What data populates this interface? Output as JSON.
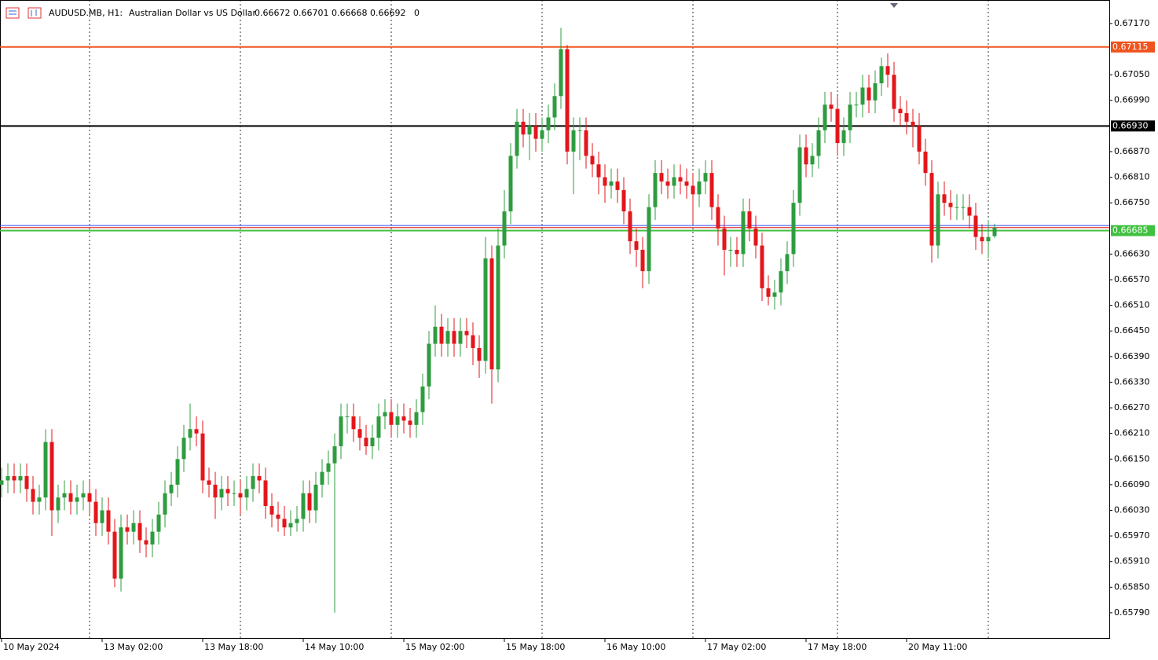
{
  "chart_data": {
    "type": "candlestick",
    "symbol": "AUDUSD.MB, H1:",
    "description": "Australian Dollar vs US Dollar",
    "quote": "0.66672 0.66701 0.66668 0.66692",
    "volume": "0",
    "categories": [
      "10 May 2024",
      null,
      null,
      null,
      null,
      null,
      null,
      null,
      null,
      null,
      null,
      null,
      null,
      null,
      null,
      null,
      "13 May 02:00",
      null,
      null,
      null,
      null,
      null,
      null,
      null,
      null,
      null,
      null,
      null,
      null,
      null,
      null,
      null,
      "13 May 18:00",
      null,
      null,
      null,
      null,
      null,
      null,
      null,
      null,
      null,
      null,
      null,
      null,
      null,
      null,
      null,
      "14 May 10:00",
      null,
      null,
      null,
      null,
      null,
      null,
      null,
      null,
      null,
      null,
      null,
      null,
      null,
      null,
      null,
      "15 May 02:00",
      null,
      null,
      null,
      null,
      null,
      null,
      null,
      null,
      null,
      null,
      null,
      null,
      null,
      null,
      null,
      "15 May 18:00",
      null,
      null,
      null,
      null,
      null,
      null,
      null,
      null,
      null,
      null,
      null,
      null,
      null,
      null,
      null,
      "16 May 10:00",
      null,
      null,
      null,
      null,
      null,
      null,
      null,
      null,
      null,
      null,
      null,
      null,
      null,
      null,
      null,
      "17 May 02:00",
      null,
      null,
      null,
      null,
      null,
      null,
      null,
      null,
      null,
      null,
      null,
      null,
      null,
      null,
      null,
      "17 May 18:00",
      null,
      null,
      null,
      null,
      null,
      null,
      null,
      null,
      null,
      null,
      null,
      null,
      null,
      null,
      null,
      "20 May 11:00",
      null,
      null,
      null,
      null,
      null,
      null,
      null,
      null,
      null,
      null,
      null,
      null,
      null,
      null
    ],
    "open": [
      0.6609,
      0.661,
      0.6611,
      0.661,
      0.6611,
      0.6608,
      0.6605,
      0.6606,
      0.6619,
      0.6603,
      0.6606,
      0.6607,
      0.6605,
      0.6606,
      0.6607,
      0.6605,
      0.66,
      0.6603,
      0.6598,
      0.6587,
      0.6599,
      0.6598,
      0.66,
      0.6596,
      0.6595,
      0.6598,
      0.6602,
      0.6607,
      0.6609,
      0.6615,
      0.662,
      0.6622,
      0.6621,
      0.661,
      0.6609,
      0.6606,
      0.6608,
      0.6607,
      0.6607,
      0.6606,
      0.6608,
      0.6611,
      0.661,
      0.6604,
      0.6602,
      0.6601,
      0.6599,
      0.66,
      0.6601,
      0.6607,
      0.6603,
      0.6609,
      0.6612,
      0.6614,
      0.6618,
      0.6625,
      0.6625,
      0.6622,
      0.662,
      0.6618,
      0.662,
      0.6625,
      0.6626,
      0.6623,
      0.6625,
      0.6624,
      0.6623,
      0.6626,
      0.6632,
      0.6642,
      0.6646,
      0.6642,
      0.6645,
      0.6642,
      0.6645,
      0.6644,
      0.6641,
      0.6638,
      0.6662,
      0.6636,
      0.6665,
      0.6673,
      0.6686,
      0.6694,
      0.6691,
      0.6693,
      0.669,
      0.6692,
      0.6695,
      0.67,
      0.6711,
      0.6687,
      0.6692,
      0.6692,
      0.6686,
      0.6684,
      0.6681,
      0.6679,
      0.668,
      0.6678,
      0.6673,
      0.6666,
      0.6664,
      0.6659,
      0.6674,
      0.6682,
      0.668,
      0.6679,
      0.6681,
      0.668,
      0.6679,
      0.6677,
      0.668,
      0.6682,
      0.6674,
      0.6669,
      0.6664,
      0.6664,
      0.6663,
      0.6673,
      0.6669,
      0.6665,
      0.6655,
      0.6653,
      0.6654,
      0.6659,
      0.6663,
      0.6675,
      0.6688,
      0.6684,
      0.6686,
      0.6692,
      0.6698,
      0.6697,
      0.6689,
      0.6692,
      0.6698,
      0.6698,
      0.6702,
      0.6699,
      0.6703,
      0.6707,
      0.6705,
      0.6697,
      0.6696,
      0.6694,
      0.6693,
      0.6687,
      0.6682,
      0.6665,
      0.6677,
      0.6675,
      0.6674,
      0.6674,
      0.6674,
      0.6672,
      0.6667,
      0.6666,
      0.66672
    ],
    "high": [
      0.6613,
      0.6614,
      0.6614,
      0.6614,
      0.6614,
      0.6611,
      0.6609,
      0.6622,
      0.6622,
      0.6609,
      0.661,
      0.661,
      0.6609,
      0.661,
      0.661,
      0.6608,
      0.6606,
      0.6606,
      0.6601,
      0.6602,
      0.6602,
      0.6603,
      0.6603,
      0.6599,
      0.6601,
      0.6605,
      0.661,
      0.6612,
      0.6618,
      0.6623,
      0.6628,
      0.6625,
      0.6624,
      0.6613,
      0.6612,
      0.6611,
      0.6611,
      0.661,
      0.661,
      0.6611,
      0.6614,
      0.6614,
      0.6613,
      0.6607,
      0.6605,
      0.6604,
      0.6603,
      0.6604,
      0.661,
      0.661,
      0.6612,
      0.6615,
      0.6617,
      0.6621,
      0.6628,
      0.6628,
      0.6628,
      0.6625,
      0.6623,
      0.6623,
      0.6628,
      0.6629,
      0.6629,
      0.6628,
      0.6628,
      0.6627,
      0.6629,
      0.6635,
      0.6645,
      0.6651,
      0.6649,
      0.6648,
      0.6648,
      0.6648,
      0.6648,
      0.6647,
      0.6644,
      0.6667,
      0.6665,
      0.6669,
      0.6678,
      0.6689,
      0.6697,
      0.6697,
      0.6696,
      0.6696,
      0.6695,
      0.6698,
      0.6703,
      0.6716,
      0.6712,
      0.6695,
      0.6695,
      0.6695,
      0.6689,
      0.6687,
      0.6684,
      0.6683,
      0.6683,
      0.6681,
      0.6676,
      0.6669,
      0.6667,
      0.6677,
      0.6685,
      0.6685,
      0.6683,
      0.6684,
      0.6684,
      0.6683,
      0.6682,
      0.6683,
      0.6685,
      0.6685,
      0.6677,
      0.6672,
      0.6667,
      0.6667,
      0.6676,
      0.6676,
      0.6672,
      0.6668,
      0.6658,
      0.6657,
      0.6662,
      0.6666,
      0.6678,
      0.6691,
      0.6691,
      0.6689,
      0.6695,
      0.6701,
      0.6701,
      0.67,
      0.6695,
      0.6701,
      0.6701,
      0.6705,
      0.6705,
      0.6706,
      0.6709,
      0.671,
      0.6708,
      0.67,
      0.6699,
      0.6697,
      0.6696,
      0.669,
      0.6685,
      0.668,
      0.668,
      0.6678,
      0.6677,
      0.6677,
      0.6677,
      0.6675,
      0.667,
      0.6671,
      0.66701
    ],
    "low": [
      0.6606,
      0.6607,
      0.6607,
      0.6607,
      0.6605,
      0.6602,
      0.6602,
      0.6603,
      0.6597,
      0.66,
      0.6603,
      0.6602,
      0.6602,
      0.6603,
      0.6602,
      0.6597,
      0.6597,
      0.6595,
      0.6585,
      0.6584,
      0.6595,
      0.6595,
      0.6593,
      0.6592,
      0.6592,
      0.6595,
      0.6599,
      0.6604,
      0.6606,
      0.6612,
      0.6617,
      0.6618,
      0.6607,
      0.6606,
      0.6601,
      0.6603,
      0.6604,
      0.6604,
      0.6602,
      0.6603,
      0.6605,
      0.6607,
      0.6601,
      0.6599,
      0.6598,
      0.6597,
      0.6597,
      0.6598,
      0.6598,
      0.66,
      0.66,
      0.6606,
      0.6609,
      0.6579,
      0.6615,
      0.6621,
      0.6619,
      0.6617,
      0.6616,
      0.6615,
      0.6617,
      0.6622,
      0.662,
      0.662,
      0.6621,
      0.662,
      0.662,
      0.6623,
      0.6629,
      0.6639,
      0.6639,
      0.6639,
      0.6639,
      0.6639,
      0.6641,
      0.6637,
      0.6634,
      0.6635,
      0.6628,
      0.6633,
      0.6662,
      0.667,
      0.6683,
      0.6688,
      0.6685,
      0.6687,
      0.6687,
      0.6689,
      0.6692,
      0.6697,
      0.6684,
      0.6677,
      0.6685,
      0.6683,
      0.6681,
      0.6677,
      0.6675,
      0.6676,
      0.6675,
      0.667,
      0.6663,
      0.666,
      0.6655,
      0.6656,
      0.6671,
      0.6677,
      0.6676,
      0.6676,
      0.6677,
      0.6676,
      0.667,
      0.6674,
      0.6677,
      0.6671,
      0.6665,
      0.6658,
      0.666,
      0.666,
      0.666,
      0.6666,
      0.6662,
      0.6652,
      0.6651,
      0.665,
      0.6651,
      0.6656,
      0.666,
      0.6672,
      0.6681,
      0.6681,
      0.6683,
      0.6689,
      0.6694,
      0.6686,
      0.6686,
      0.6689,
      0.6695,
      0.6695,
      0.6696,
      0.6696,
      0.67,
      0.6702,
      0.6694,
      0.6693,
      0.6691,
      0.6688,
      0.6684,
      0.6679,
      0.6661,
      0.6662,
      0.6672,
      0.6671,
      0.6671,
      0.6671,
      0.6669,
      0.6664,
      0.6663,
      0.6662,
      0.66668
    ],
    "close": [
      0.661,
      0.6611,
      0.661,
      0.6611,
      0.6608,
      0.6605,
      0.6606,
      0.6619,
      0.6603,
      0.6606,
      0.6607,
      0.6605,
      0.6606,
      0.6607,
      0.6605,
      0.66,
      0.6603,
      0.6598,
      0.6587,
      0.6599,
      0.6598,
      0.66,
      0.6596,
      0.6595,
      0.6598,
      0.6602,
      0.6607,
      0.6609,
      0.6615,
      0.662,
      0.6622,
      0.6621,
      0.661,
      0.6609,
      0.6606,
      0.6608,
      0.6607,
      0.6607,
      0.6606,
      0.6608,
      0.6611,
      0.661,
      0.6604,
      0.6602,
      0.6601,
      0.6599,
      0.66,
      0.6601,
      0.6607,
      0.6603,
      0.6609,
      0.6612,
      0.6614,
      0.6618,
      0.6625,
      0.6625,
      0.6622,
      0.662,
      0.6618,
      0.662,
      0.6625,
      0.6626,
      0.6623,
      0.6625,
      0.6624,
      0.6623,
      0.6626,
      0.6632,
      0.6642,
      0.6646,
      0.6642,
      0.6645,
      0.6642,
      0.6645,
      0.6644,
      0.6641,
      0.6638,
      0.6662,
      0.6636,
      0.6665,
      0.6673,
      0.6686,
      0.6694,
      0.6691,
      0.6693,
      0.669,
      0.6692,
      0.6695,
      0.67,
      0.6711,
      0.6687,
      0.6692,
      0.6692,
      0.6686,
      0.6684,
      0.6681,
      0.6679,
      0.668,
      0.6678,
      0.6673,
      0.6666,
      0.6664,
      0.6659,
      0.6674,
      0.6682,
      0.668,
      0.6679,
      0.6681,
      0.668,
      0.6679,
      0.6677,
      0.668,
      0.6682,
      0.6674,
      0.6669,
      0.6664,
      0.6664,
      0.6663,
      0.6673,
      0.6669,
      0.6665,
      0.6655,
      0.6653,
      0.6654,
      0.6659,
      0.6663,
      0.6675,
      0.6688,
      0.6684,
      0.6686,
      0.6692,
      0.6698,
      0.6697,
      0.6689,
      0.6692,
      0.6698,
      0.6698,
      0.6702,
      0.6699,
      0.6703,
      0.6707,
      0.6705,
      0.6697,
      0.6696,
      0.6694,
      0.6693,
      0.6687,
      0.6682,
      0.6665,
      0.6677,
      0.6675,
      0.6674,
      0.6674,
      0.6674,
      0.6672,
      0.6667,
      0.6666,
      0.6667,
      0.66692
    ],
    "up_color": "#2e9c3f",
    "down_color": "#e3161b",
    "separators": [
      14,
      38,
      62,
      86,
      110,
      133,
      157
    ],
    "ylim": [
      0.65731,
      0.67225
    ],
    "yticks": [
      {
        "value": 0.6717,
        "label": "0.67170"
      },
      {
        "value": 0.6705,
        "label": "0.67050"
      },
      {
        "value": 0.6699,
        "label": "0.66990"
      },
      {
        "value": 0.6687,
        "label": "0.66870"
      },
      {
        "value": 0.6681,
        "label": "0.66810"
      },
      {
        "value": 0.6675,
        "label": "0.66750"
      },
      {
        "value": 0.6663,
        "label": "0.66630"
      },
      {
        "value": 0.6657,
        "label": "0.66570"
      },
      {
        "value": 0.6651,
        "label": "0.66510"
      },
      {
        "value": 0.6645,
        "label": "0.66450"
      },
      {
        "value": 0.6639,
        "label": "0.66390"
      },
      {
        "value": 0.6633,
        "label": "0.66330"
      },
      {
        "value": 0.6627,
        "label": "0.66270"
      },
      {
        "value": 0.6621,
        "label": "0.66210"
      },
      {
        "value": 0.6615,
        "label": "0.66150"
      },
      {
        "value": 0.6609,
        "label": "0.66090"
      },
      {
        "value": 0.6603,
        "label": "0.66030"
      },
      {
        "value": 0.6597,
        "label": "0.65970"
      },
      {
        "value": 0.6591,
        "label": "0.65910"
      },
      {
        "value": 0.6585,
        "label": "0.65850"
      },
      {
        "value": 0.6579,
        "label": "0.65790"
      }
    ],
    "price_lines": [
      {
        "value": 0.66697,
        "color": "#2a3cff"
      },
      {
        "value": 0.66692,
        "color": "#e3161b"
      }
    ],
    "levels": [
      {
        "value": 0.67115,
        "label": "0.67115",
        "color": "#f0541e"
      },
      {
        "value": 0.6693,
        "label": "0.66930",
        "color": "#000000"
      },
      {
        "value": 0.66685,
        "label": "0.66685",
        "color": "#3fc13f"
      }
    ]
  }
}
